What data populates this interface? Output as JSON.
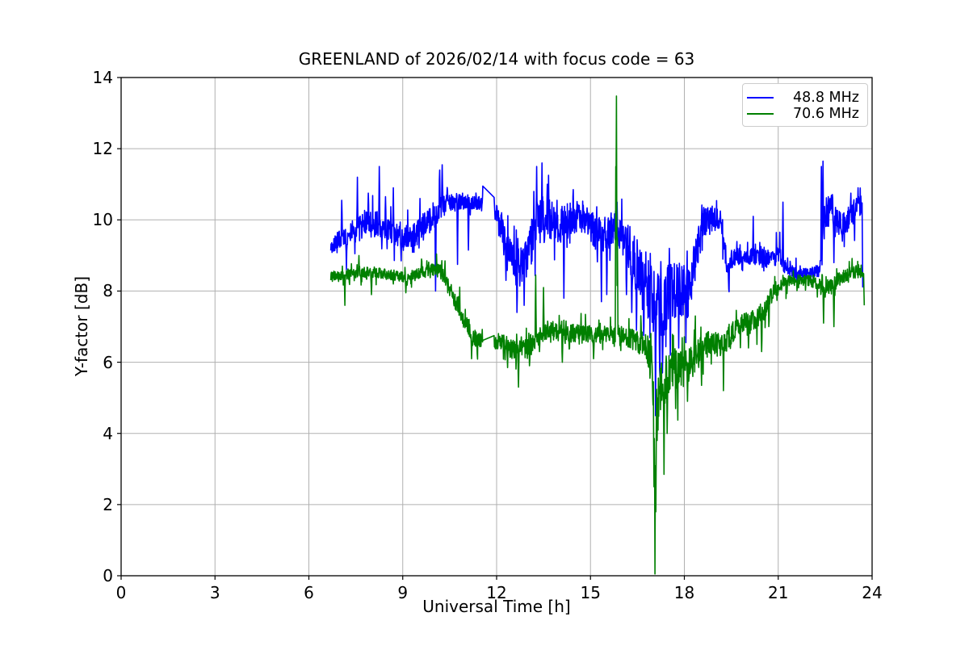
{
  "title": "GREENLAND of 2026/02/14 with focus code = 63",
  "axes": {
    "xlabel": "Universal Time [h]",
    "ylabel": "Y-factor [dB]",
    "xlim": [
      0,
      24
    ],
    "ylim": [
      0,
      14
    ],
    "xticks": [
      0,
      3,
      6,
      9,
      12,
      15,
      18,
      21,
      24
    ],
    "yticks": [
      0,
      2,
      4,
      6,
      8,
      10,
      12,
      14
    ],
    "grid": true,
    "grid_color": "#b0b0b0",
    "spine_color": "#000000",
    "background": "#ffffff"
  },
  "legend": {
    "position": "upper right",
    "entries": [
      {
        "label": "48.8 MHz",
        "color": "#0000ff"
      },
      {
        "label": "70.6 MHz",
        "color": "#008000"
      }
    ]
  },
  "chart_data": {
    "type": "line",
    "title": "GREENLAND of 2026/02/14 with focus code = 63",
    "xlabel": "Universal Time [h]",
    "ylabel": "Y-factor [dB]",
    "xlim": [
      0,
      24
    ],
    "ylim": [
      0,
      14
    ],
    "legend_position": "upper right",
    "note": "Two noisy riometer-style Y-factor traces vs Universal Time. Data span ~6.7 h to ~23.7 h. keyframes = [UT hour, band center dB, band half-width dB] of the noisy trace; spikes = [UT hour, peak/dip dB] of narrow excursions; gaps = straight-line data gaps. Green crashes to 0 dB near 17.05 h and spikes to 13.5 dB at 15.83 h.",
    "series": [
      {
        "name": "48.8 MHz",
        "color": "#0000ff",
        "t_start": 6.7,
        "t_end": 23.7,
        "keyframes": [
          [
            6.7,
            9.3,
            0.22
          ],
          [
            7.0,
            9.45,
            0.28
          ],
          [
            7.4,
            9.65,
            0.35
          ],
          [
            7.8,
            9.9,
            0.4
          ],
          [
            8.2,
            9.85,
            0.4
          ],
          [
            8.6,
            9.7,
            0.35
          ],
          [
            9.0,
            9.5,
            0.3
          ],
          [
            9.4,
            9.6,
            0.35
          ],
          [
            9.8,
            9.9,
            0.38
          ],
          [
            10.1,
            10.2,
            0.35
          ],
          [
            10.4,
            10.45,
            0.25
          ],
          [
            10.8,
            10.5,
            0.22
          ],
          [
            11.2,
            10.5,
            0.2
          ],
          [
            11.55,
            10.45,
            0.2
          ],
          [
            11.95,
            10.25,
            0.25
          ],
          [
            12.1,
            9.9,
            0.35
          ],
          [
            12.35,
            9.3,
            0.45
          ],
          [
            12.6,
            8.8,
            0.5
          ],
          [
            12.9,
            8.85,
            0.6
          ],
          [
            13.15,
            9.5,
            0.7
          ],
          [
            13.4,
            10.0,
            0.7
          ],
          [
            13.7,
            10.0,
            0.55
          ],
          [
            14.0,
            9.8,
            0.55
          ],
          [
            14.3,
            10.0,
            0.5
          ],
          [
            14.6,
            10.1,
            0.45
          ],
          [
            14.9,
            9.95,
            0.45
          ],
          [
            15.2,
            9.6,
            0.5
          ],
          [
            15.5,
            9.5,
            0.5
          ],
          [
            15.8,
            9.8,
            0.45
          ],
          [
            16.1,
            9.5,
            0.6
          ],
          [
            16.4,
            8.9,
            0.75
          ],
          [
            16.7,
            8.4,
            0.85
          ],
          [
            17.0,
            7.8,
            1.0
          ],
          [
            17.25,
            7.4,
            1.0
          ],
          [
            17.5,
            7.9,
            0.9
          ],
          [
            17.8,
            8.0,
            0.85
          ],
          [
            18.1,
            7.9,
            0.8
          ],
          [
            18.35,
            8.8,
            0.6
          ],
          [
            18.6,
            9.9,
            0.4
          ],
          [
            18.9,
            10.05,
            0.35
          ],
          [
            19.2,
            9.9,
            0.35
          ],
          [
            19.38,
            8.6,
            0.3
          ],
          [
            19.55,
            8.95,
            0.25
          ],
          [
            19.9,
            9.0,
            0.22
          ],
          [
            20.3,
            8.95,
            0.25
          ],
          [
            20.7,
            8.9,
            0.25
          ],
          [
            21.0,
            9.0,
            0.3
          ],
          [
            21.25,
            8.65,
            0.18
          ],
          [
            21.6,
            8.5,
            0.15
          ],
          [
            22.0,
            8.5,
            0.15
          ],
          [
            22.3,
            8.55,
            0.2
          ],
          [
            22.5,
            10.1,
            0.5
          ],
          [
            22.7,
            10.3,
            0.45
          ],
          [
            22.95,
            9.9,
            0.35
          ],
          [
            23.2,
            10.0,
            0.35
          ],
          [
            23.45,
            10.25,
            0.35
          ],
          [
            23.65,
            10.45,
            0.3
          ],
          [
            23.7,
            10.35,
            0.2
          ]
        ],
        "spikes": [
          [
            7.05,
            10.55
          ],
          [
            7.2,
            8.6
          ],
          [
            7.55,
            11.2
          ],
          [
            7.9,
            10.75
          ],
          [
            8.25,
            11.5
          ],
          [
            8.45,
            10.65
          ],
          [
            8.7,
            10.9
          ],
          [
            8.95,
            8.85
          ],
          [
            9.55,
            10.6
          ],
          [
            10.05,
            8.0
          ],
          [
            10.18,
            11.4
          ],
          [
            10.26,
            11.55
          ],
          [
            10.75,
            8.75
          ],
          [
            11.1,
            9.15
          ],
          [
            11.7,
            10.95
          ],
          [
            12.3,
            8.3
          ],
          [
            12.65,
            7.4
          ],
          [
            12.88,
            7.6
          ],
          [
            13.28,
            11.5
          ],
          [
            13.45,
            11.6
          ],
          [
            13.62,
            11.0
          ],
          [
            14.15,
            7.8
          ],
          [
            14.45,
            10.85
          ],
          [
            15.35,
            7.7
          ],
          [
            15.52,
            7.9
          ],
          [
            15.85,
            10.5
          ],
          [
            16.15,
            7.9
          ],
          [
            16.32,
            7.4
          ],
          [
            16.47,
            6.9
          ],
          [
            16.7,
            6.75
          ],
          [
            17.08,
            4.5
          ],
          [
            17.3,
            5.7
          ],
          [
            17.55,
            6.2
          ],
          [
            17.82,
            6.4
          ],
          [
            18.05,
            6.55
          ],
          [
            18.62,
            10.35
          ],
          [
            19.42,
            8.05
          ],
          [
            20.2,
            10.1
          ],
          [
            21.15,
            10.5
          ],
          [
            22.38,
            11.5
          ],
          [
            22.43,
            11.65
          ],
          [
            22.78,
            8.8
          ],
          [
            23.05,
            9.4
          ],
          [
            23.32,
            10.75
          ],
          [
            23.55,
            10.9
          ],
          [
            23.7,
            8.1
          ]
        ],
        "gaps": [
          [
            11.56,
            11.91
          ]
        ]
      },
      {
        "name": "70.6 MHz",
        "color": "#008000",
        "t_start": 6.7,
        "t_end": 23.75,
        "keyframes": [
          [
            6.7,
            8.4,
            0.13
          ],
          [
            7.1,
            8.45,
            0.15
          ],
          [
            7.5,
            8.5,
            0.17
          ],
          [
            7.9,
            8.55,
            0.15
          ],
          [
            8.3,
            8.5,
            0.15
          ],
          [
            8.7,
            8.45,
            0.15
          ],
          [
            9.1,
            8.4,
            0.15
          ],
          [
            9.5,
            8.5,
            0.15
          ],
          [
            9.9,
            8.6,
            0.17
          ],
          [
            10.2,
            8.55,
            0.2
          ],
          [
            10.45,
            8.15,
            0.22
          ],
          [
            10.7,
            7.7,
            0.25
          ],
          [
            10.95,
            7.2,
            0.25
          ],
          [
            11.2,
            6.75,
            0.22
          ],
          [
            11.5,
            6.6,
            0.2
          ],
          [
            11.9,
            6.6,
            0.22
          ],
          [
            12.2,
            6.55,
            0.25
          ],
          [
            12.5,
            6.35,
            0.28
          ],
          [
            12.8,
            6.35,
            0.28
          ],
          [
            13.1,
            6.5,
            0.3
          ],
          [
            13.4,
            6.8,
            0.28
          ],
          [
            13.7,
            6.9,
            0.25
          ],
          [
            14.0,
            6.8,
            0.28
          ],
          [
            14.3,
            6.8,
            0.28
          ],
          [
            14.6,
            6.85,
            0.25
          ],
          [
            14.9,
            6.8,
            0.25
          ],
          [
            15.2,
            6.8,
            0.25
          ],
          [
            15.5,
            6.75,
            0.25
          ],
          [
            15.8,
            6.8,
            0.28
          ],
          [
            16.1,
            6.7,
            0.28
          ],
          [
            16.4,
            6.6,
            0.3
          ],
          [
            16.7,
            6.5,
            0.35
          ],
          [
            16.95,
            6.1,
            0.5
          ],
          [
            17.1,
            5.0,
            0.85
          ],
          [
            17.3,
            5.4,
            0.75
          ],
          [
            17.6,
            5.8,
            0.6
          ],
          [
            17.9,
            5.8,
            0.55
          ],
          [
            18.2,
            6.0,
            0.5
          ],
          [
            18.5,
            6.3,
            0.4
          ],
          [
            18.8,
            6.55,
            0.35
          ],
          [
            19.1,
            6.5,
            0.35
          ],
          [
            19.4,
            6.7,
            0.3
          ],
          [
            19.7,
            7.0,
            0.28
          ],
          [
            20.0,
            7.15,
            0.28
          ],
          [
            20.3,
            7.25,
            0.3
          ],
          [
            20.6,
            7.5,
            0.3
          ],
          [
            20.85,
            8.0,
            0.22
          ],
          [
            21.1,
            8.2,
            0.18
          ],
          [
            21.5,
            8.3,
            0.16
          ],
          [
            21.9,
            8.3,
            0.16
          ],
          [
            22.2,
            8.25,
            0.2
          ],
          [
            22.5,
            8.05,
            0.25
          ],
          [
            22.8,
            8.25,
            0.22
          ],
          [
            23.1,
            8.4,
            0.2
          ],
          [
            23.4,
            8.5,
            0.2
          ],
          [
            23.65,
            8.6,
            0.18
          ],
          [
            23.75,
            8.3,
            0.15
          ]
        ],
        "spikes": [
          [
            7.15,
            7.6
          ],
          [
            7.6,
            9.0
          ],
          [
            8.0,
            7.9
          ],
          [
            9.1,
            7.95
          ],
          [
            9.6,
            8.9
          ],
          [
            10.35,
            8.85
          ],
          [
            11.2,
            6.1
          ],
          [
            12.35,
            5.85
          ],
          [
            12.7,
            5.3
          ],
          [
            13.05,
            5.9
          ],
          [
            13.25,
            8.45
          ],
          [
            13.5,
            8.1
          ],
          [
            14.1,
            6.0
          ],
          [
            15.1,
            6.1
          ],
          [
            15.81,
            11.5
          ],
          [
            15.83,
            13.48
          ],
          [
            15.86,
            9.5
          ],
          [
            16.9,
            5.55
          ],
          [
            17.0,
            4.8
          ],
          [
            17.03,
            2.5
          ],
          [
            17.06,
            0.05
          ],
          [
            17.09,
            1.8
          ],
          [
            17.13,
            3.8
          ],
          [
            17.35,
            2.85
          ],
          [
            17.45,
            4.0
          ],
          [
            17.72,
            4.7
          ],
          [
            18.1,
            4.9
          ],
          [
            18.35,
            7.3
          ],
          [
            18.55,
            5.35
          ],
          [
            19.25,
            5.2
          ],
          [
            20.05,
            6.4
          ],
          [
            20.47,
            6.3
          ],
          [
            20.7,
            7.0
          ],
          [
            22.45,
            7.1
          ],
          [
            22.78,
            7.0
          ],
          [
            23.75,
            7.6
          ]
        ],
        "gaps": [
          [
            11.56,
            11.91
          ]
        ]
      }
    ]
  }
}
